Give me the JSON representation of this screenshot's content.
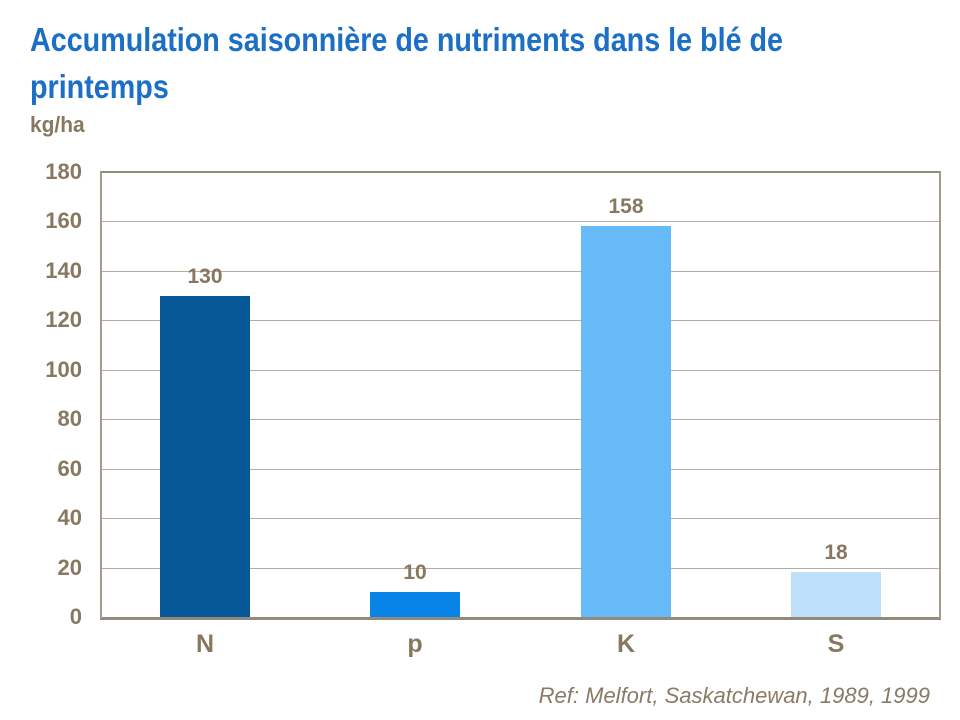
{
  "title": {
    "line1": "Accumulation saisonnière de nutriments dans le blé de",
    "line2": "printemps"
  },
  "y_axis_unit_label": "kg/ha",
  "reference": "Ref: Melfort, Saskatchewan, 1989, 1999",
  "colors": {
    "title_blue": "#1B6FC5",
    "axis_text": "#87785F",
    "gridline": "#b5ab9e",
    "plot_border": "#928a7d",
    "reference_text": "#8a7a66",
    "bar_n": "#075897",
    "bar_p": "#0883E8",
    "bar_k": "#66BAF8",
    "bar_s": "#BEE0FA"
  },
  "chart_data": {
    "type": "bar",
    "title": "Accumulation saisonnière de nutriments dans le blé de printemps",
    "ylabel": "kg/ha",
    "xlabel": "",
    "categories": [
      "N",
      "p",
      "K",
      "S"
    ],
    "values": [
      130,
      10,
      158,
      18
    ],
    "data_labels": [
      "130",
      "10",
      "158",
      "18"
    ],
    "bar_colors": [
      "#075897",
      "#0883E8",
      "#66BAF8",
      "#BEE0FA"
    ],
    "ylim": [
      0,
      180
    ],
    "yticks": [
      0,
      20,
      40,
      60,
      80,
      100,
      120,
      140,
      160,
      180
    ],
    "grid": true,
    "legend": "none"
  }
}
